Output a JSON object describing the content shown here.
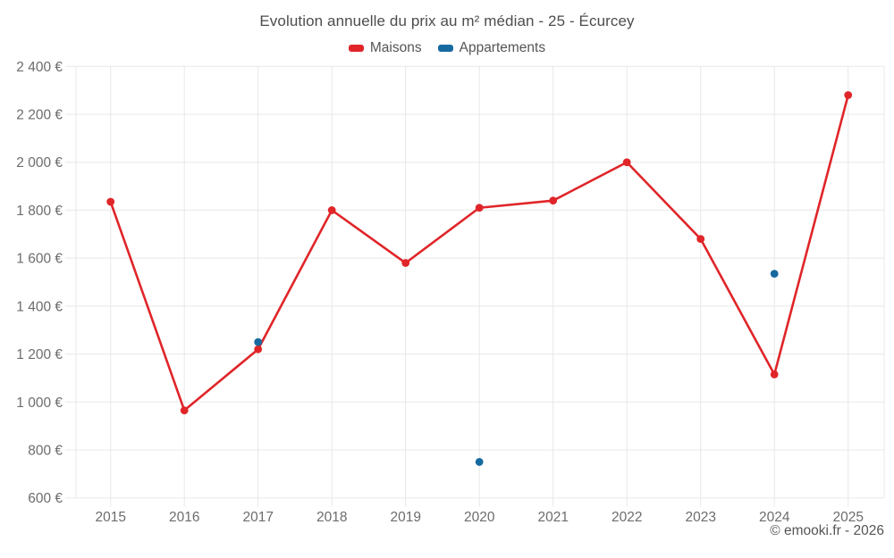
{
  "header": {
    "title": "Evolution annuelle du prix au m² médian - 25 - Écurcey"
  },
  "footer": {
    "copyright": "© emooki.fr - 2026"
  },
  "colors": {
    "maisons": "#e02529",
    "appartements": "#176a9f",
    "gridline": "#e8e8e8",
    "tick_text": "#6c6c6c"
  },
  "chart_data": {
    "type": "line",
    "title": "Evolution annuelle du prix au m² médian - 25 - Écurcey",
    "categories": [
      "2015",
      "2016",
      "2017",
      "2018",
      "2019",
      "2020",
      "2021",
      "2022",
      "2023",
      "2024",
      "2025"
    ],
    "series": [
      {
        "name": "Maisons",
        "color": "#e02529",
        "values": [
          1835,
          965,
          1220,
          1800,
          1580,
          1810,
          1840,
          2000,
          1680,
          1115,
          2280
        ]
      },
      {
        "name": "Appartements",
        "color": "#176a9f",
        "values": [
          null,
          null,
          1250,
          null,
          null,
          750,
          null,
          null,
          null,
          1535,
          null
        ]
      }
    ],
    "xlabel": "",
    "ylabel": "",
    "ylim": [
      600,
      2400
    ],
    "ytick_step": 200,
    "yticks": [
      "600 €",
      "800 €",
      "1 000 €",
      "1 200 €",
      "1 400 €",
      "1 600 €",
      "1 800 €",
      "2 000 €",
      "2 200 €",
      "2 400 €"
    ],
    "grid": true,
    "legend_position": "top",
    "currency": "€"
  }
}
